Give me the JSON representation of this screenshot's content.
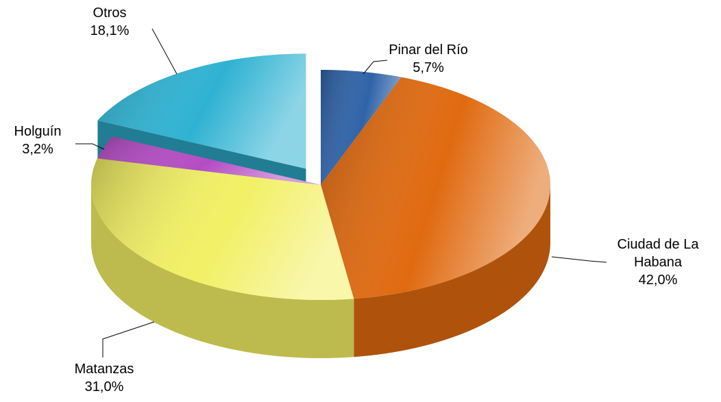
{
  "chart_data": {
    "type": "pie",
    "categories": [
      "Pinar del Río",
      "Ciudad de La Habana",
      "Matanzas",
      "Holguín",
      "Otros"
    ],
    "values": [
      5.7,
      42.0,
      31.0,
      3.2,
      18.1
    ],
    "value_labels": [
      "5,7%",
      "42,0%",
      "31,0%",
      "3,2%",
      "18,1%"
    ],
    "colors": [
      "#2f63a8",
      "#e06a10",
      "#f2f064",
      "#b44cc4",
      "#2fb2d2"
    ],
    "exploded": "Otros"
  }
}
